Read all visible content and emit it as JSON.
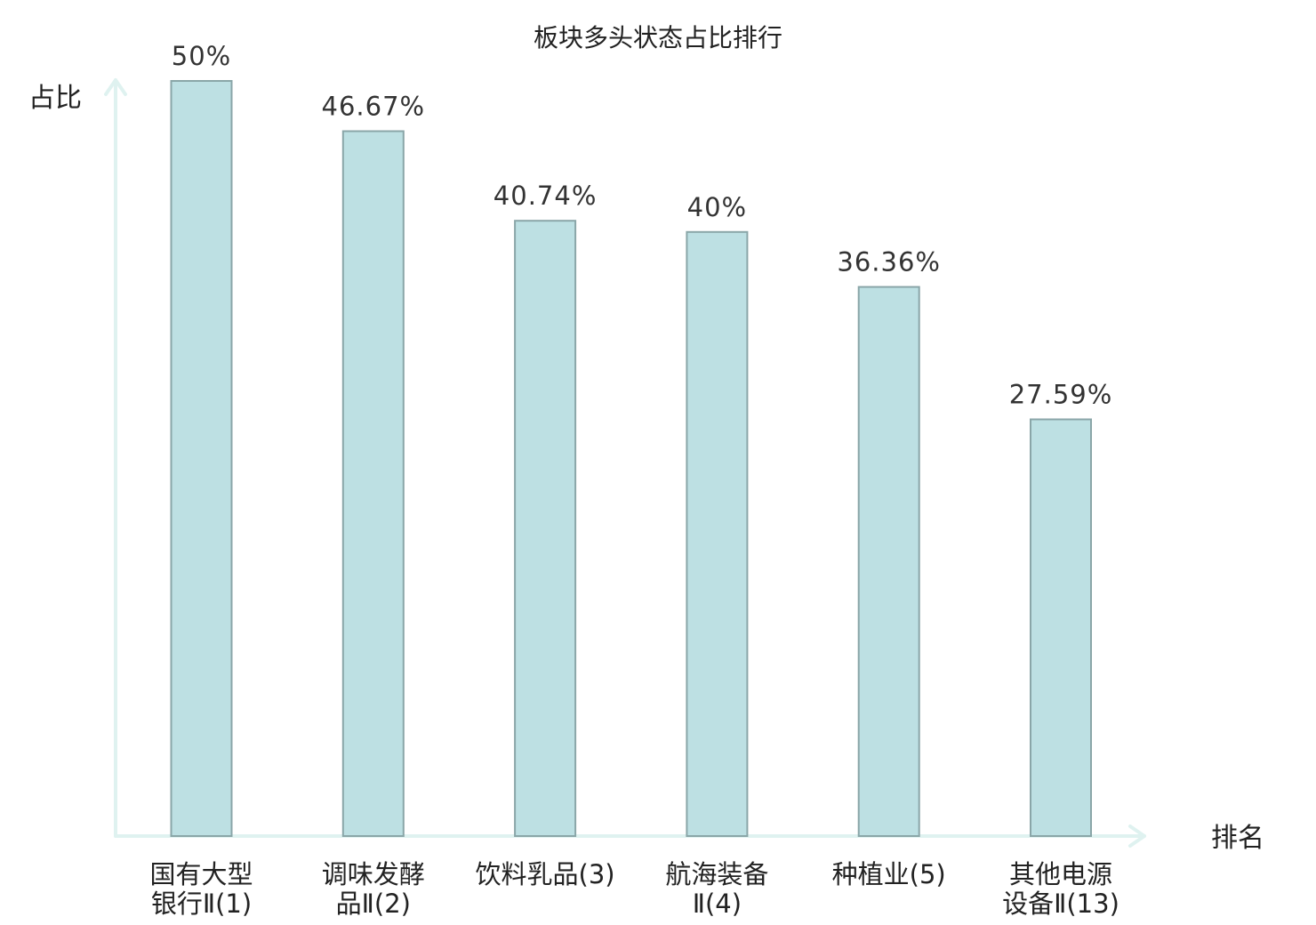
{
  "chart_data": {
    "type": "bar",
    "title": "板块多头状态占比排行",
    "xlabel": "排名",
    "ylabel": "占比",
    "categories": [
      [
        "国有大型",
        "银行Ⅱ(1)"
      ],
      [
        "调味发酵",
        "品Ⅱ(2)"
      ],
      [
        "饮料乳品(3)"
      ],
      [
        "航海装备",
        "Ⅱ(4)"
      ],
      [
        "种植业(5)"
      ],
      [
        "其他电源",
        "设备Ⅱ(13)"
      ]
    ],
    "values": [
      50,
      46.67,
      40.74,
      40,
      36.36,
      27.59
    ],
    "value_labels": [
      "50%",
      "46.67%",
      "40.74%",
      "40%",
      "36.36%",
      "27.59%"
    ],
    "highlight_index": 5,
    "ylim": [
      0,
      50
    ],
    "grid": false,
    "colors": {
      "bar_fill": "#bde0e3",
      "bar_stroke": "#8aa6a8",
      "axis": "#dff2f0",
      "text": "#222222",
      "highlight_text": "#e8191c"
    }
  }
}
